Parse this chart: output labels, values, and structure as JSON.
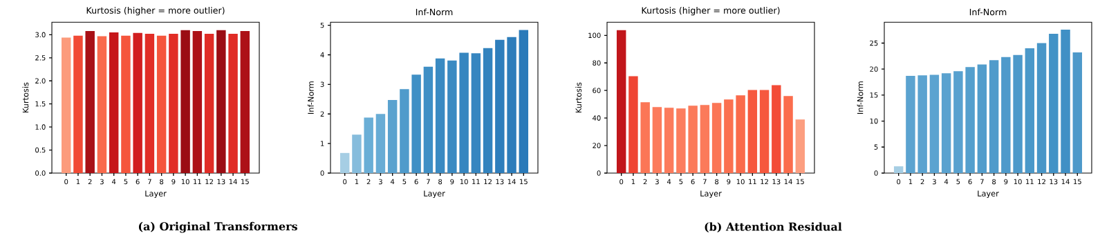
{
  "chart_data": [
    {
      "type": "bar",
      "title": "Kurtosis (higher = more outlier)",
      "xlabel": "Layer",
      "ylabel": "Kurtosis",
      "categories": [
        "0",
        "1",
        "2",
        "3",
        "4",
        "5",
        "6",
        "7",
        "8",
        "9",
        "10",
        "11",
        "12",
        "13",
        "14",
        "15"
      ],
      "values": [
        2.94,
        2.98,
        3.08,
        2.97,
        3.05,
        2.98,
        3.04,
        3.02,
        2.98,
        3.02,
        3.1,
        3.08,
        3.02,
        3.1,
        3.02,
        3.08
      ],
      "colors": [
        "#fc9b7c",
        "#f14a35",
        "#a91016",
        "#f96a4c",
        "#c6171b",
        "#f5553c",
        "#d11e1f",
        "#e12d26",
        "#f5553c",
        "#e12d26",
        "#9b0d14",
        "#ad1117",
        "#e02c26",
        "#9b0d14",
        "#e02c26",
        "#ad1117"
      ],
      "ylim": [
        0,
        3.27
      ],
      "yticks": [
        {
          "value": 0,
          "label": "0.0"
        },
        {
          "value": 0.5,
          "label": "0.5"
        },
        {
          "value": 1,
          "label": "1.0"
        },
        {
          "value": 1.5,
          "label": "1.5"
        },
        {
          "value": 2,
          "label": "2.0"
        },
        {
          "value": 2.5,
          "label": "2.5"
        },
        {
          "value": 3,
          "label": "3.0"
        }
      ],
      "annotations": [
        "(a) Original Transformers"
      ]
    },
    {
      "type": "bar",
      "title": "Inf-Norm",
      "xlabel": "Layer",
      "ylabel": "Inf-Norm",
      "categories": [
        "0",
        "1",
        "2",
        "3",
        "4",
        "5",
        "6",
        "7",
        "8",
        "9",
        "10",
        "11",
        "12",
        "13",
        "14",
        "15"
      ],
      "values": [
        0.68,
        1.3,
        1.88,
        2.0,
        2.47,
        2.84,
        3.33,
        3.6,
        3.88,
        3.81,
        4.07,
        4.05,
        4.23,
        4.51,
        4.6,
        4.84
      ],
      "colors": [
        "#a6cee4",
        "#86bcdc",
        "#6aaed6",
        "#68acd5",
        "#5aa2cf",
        "#4f9bcb",
        "#4090c5",
        "#3f8fc5",
        "#3a8ac2",
        "#3a8ac2",
        "#3686c0",
        "#3686c0",
        "#3383be",
        "#2e7ebc",
        "#2d7dbb",
        "#2a7ab9"
      ],
      "ylim": [
        0,
        5.1
      ],
      "yticks": [
        0,
        1,
        2,
        3,
        4,
        5
      ]
    },
    {
      "type": "bar",
      "title": "Kurtosis (higher = more outlier)",
      "xlabel": "Layer",
      "ylabel": "Kurtosis",
      "categories": [
        "0",
        "1",
        "2",
        "3",
        "4",
        "5",
        "6",
        "7",
        "8",
        "9",
        "10",
        "11",
        "12",
        "13",
        "14",
        "15"
      ],
      "values": [
        103.8,
        70.4,
        51.4,
        47.9,
        47.4,
        46.9,
        48.9,
        49.4,
        50.9,
        53.4,
        56.4,
        60.4,
        60.4,
        63.9,
        55.9,
        38.9
      ],
      "colors": [
        "#c1161b",
        "#ef4533",
        "#fb7656",
        "#fc7b5c",
        "#fc7b5c",
        "#fc7d5e",
        "#fb7a5a",
        "#fb7a5a",
        "#fb7656",
        "#fb7050",
        "#fa6a4b",
        "#f6583e",
        "#f6583e",
        "#f34c37",
        "#fb6d4d",
        "#fc9e80"
      ],
      "ylim": [
        0,
        109.5
      ],
      "yticks": [
        0,
        20,
        40,
        60,
        80,
        100
      ],
      "annotations": [
        "(b) Attention Residual"
      ]
    },
    {
      "type": "bar",
      "title": "Inf-Norm",
      "xlabel": "Layer",
      "ylabel": "Inf-Norm",
      "categories": [
        "0",
        "1",
        "2",
        "3",
        "4",
        "5",
        "6",
        "7",
        "8",
        "9",
        "10",
        "11",
        "12",
        "13",
        "14",
        "15"
      ],
      "values": [
        1.3,
        18.7,
        18.8,
        18.9,
        19.2,
        19.6,
        20.4,
        20.9,
        21.7,
        22.3,
        22.7,
        24.0,
        25.0,
        26.8,
        27.6,
        23.2
      ],
      "colors": [
        "#a6cee4",
        "#5ba3d0",
        "#5ba3d0",
        "#5ba3d0",
        "#5aa2cf",
        "#58a1cf",
        "#549fcd",
        "#529dcc",
        "#509bcb",
        "#4e9acb",
        "#4d99ca",
        "#4a98c9",
        "#4896c8",
        "#4292c6",
        "#4090c5",
        "#4d99ca"
      ],
      "ylim": [
        0,
        29
      ],
      "yticks": [
        0,
        5,
        10,
        15,
        20,
        25
      ]
    }
  ]
}
